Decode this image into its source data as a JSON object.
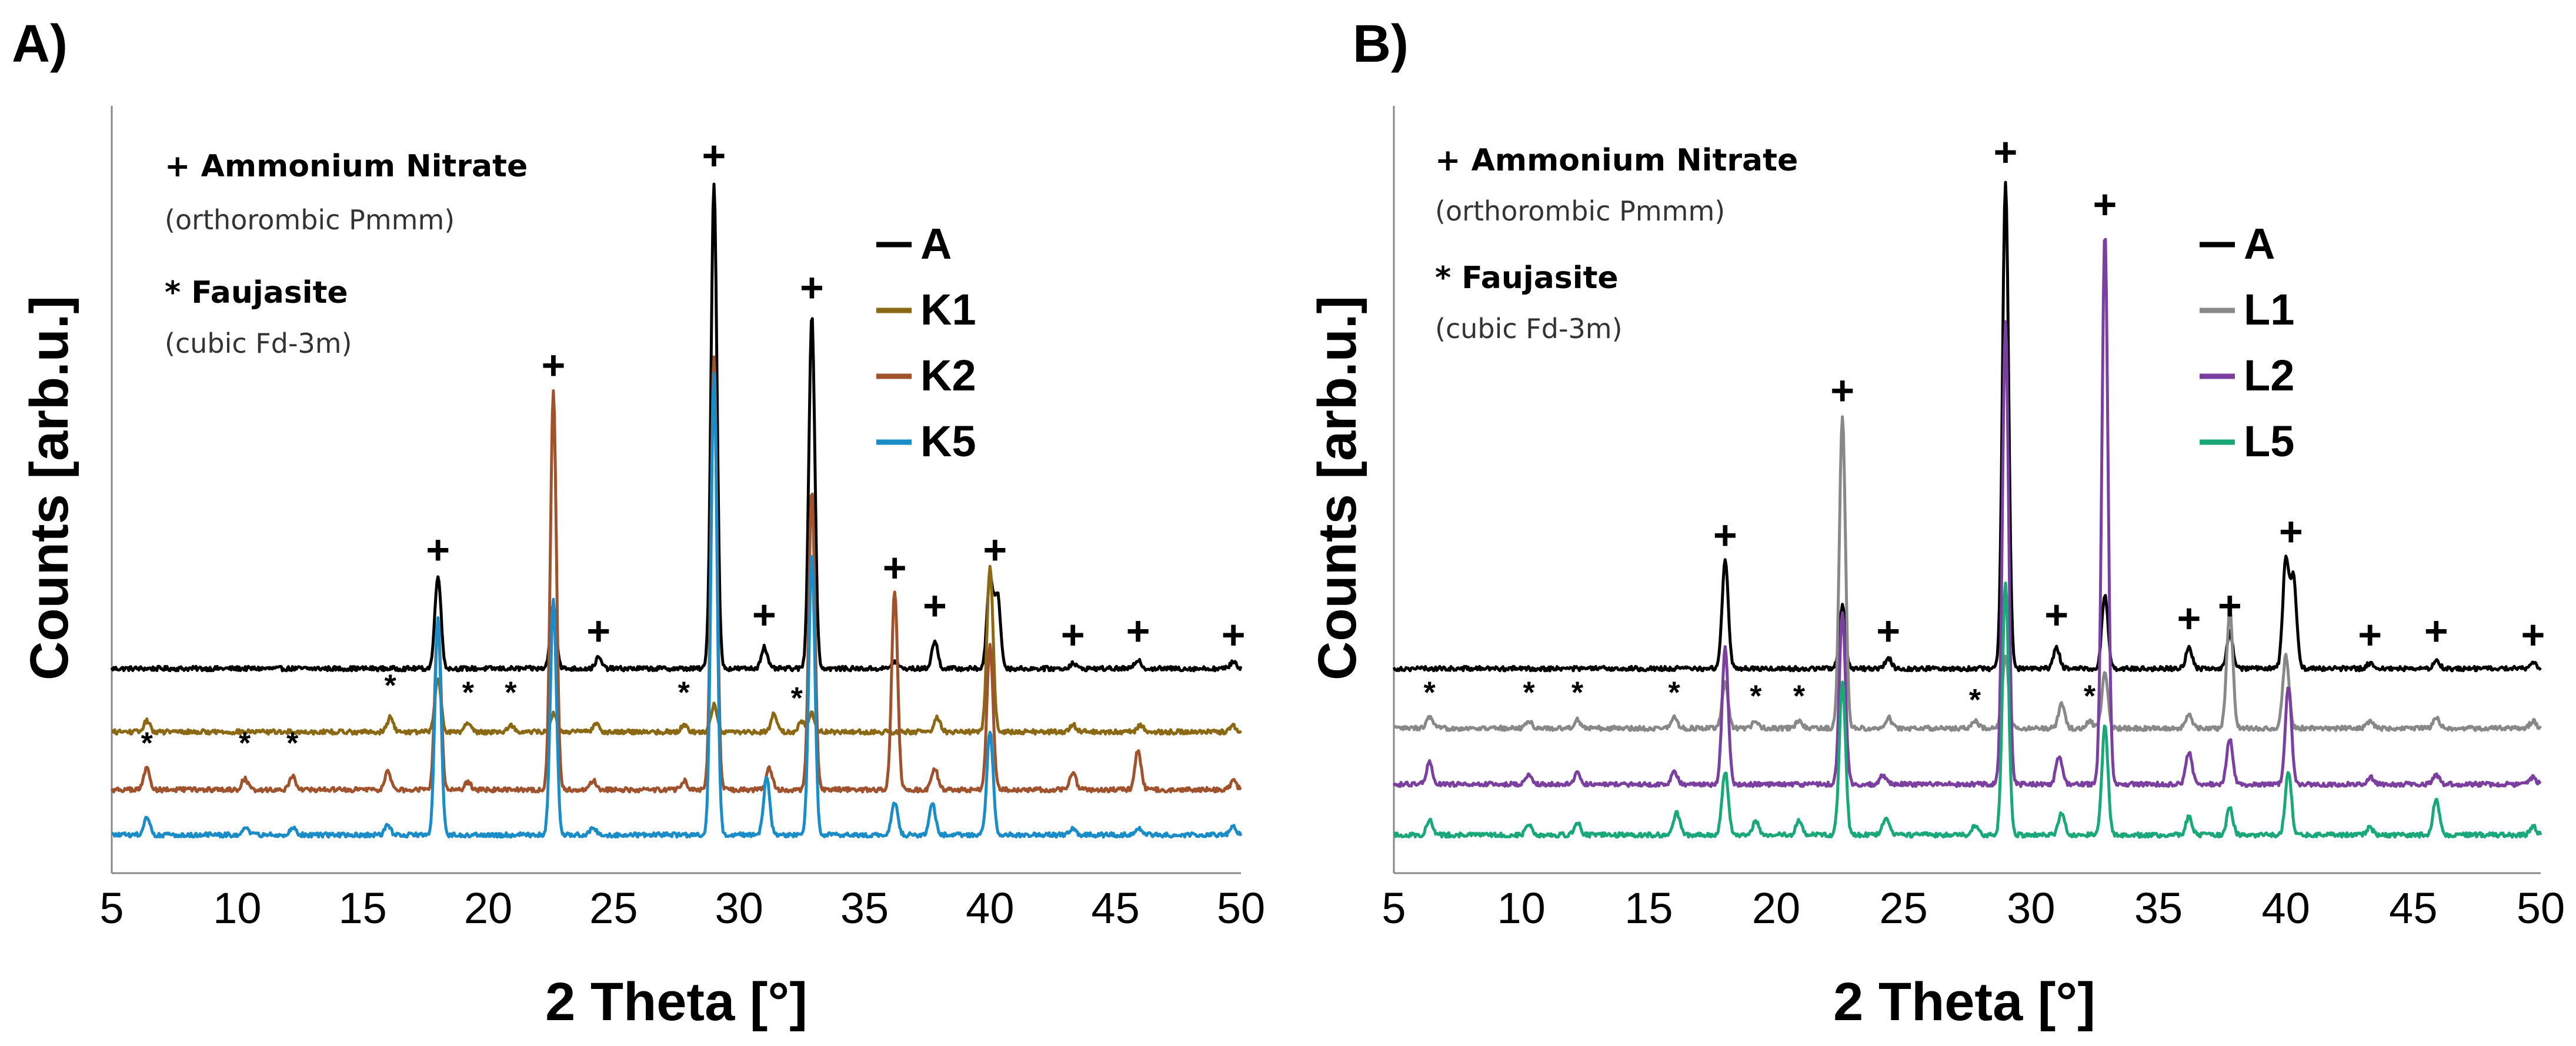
{
  "chart_data": [
    {
      "type": "line",
      "panel_label": "A)",
      "xlabel": "2 Theta [°]",
      "ylabel": "Counts [arb.u.]",
      "xlim": [
        5,
        50
      ],
      "xticks": [
        "5",
        "10",
        "15",
        "20",
        "25",
        "30",
        "35",
        "40",
        "45",
        "50"
      ],
      "annotations": {
        "plus_title": "+ Ammonium Nitrate",
        "plus_sub": "(orthorombic Pmmm)",
        "star_title": "* Faujasite",
        "star_sub": "(cubic Fd-3m)"
      },
      "legend": [
        "A",
        "K1",
        "K2",
        "K5"
      ],
      "series": [
        {
          "name": "A",
          "color": "#000000",
          "baseline": 0.0,
          "peaks": [
            [
              18.0,
              0.52
            ],
            [
              22.6,
              0.35
            ],
            [
              24.4,
              0.06
            ],
            [
              29.0,
              2.68
            ],
            [
              31.0,
              0.12
            ],
            [
              32.9,
              1.95
            ],
            [
              36.2,
              0.04
            ],
            [
              37.8,
              0.15
            ],
            [
              40.0,
              0.5
            ],
            [
              40.3,
              0.4
            ],
            [
              43.3,
              0.03
            ],
            [
              45.9,
              0.05
            ],
            [
              49.7,
              0.04
            ]
          ]
        },
        {
          "name": "K1",
          "color": "#8B6914",
          "baseline": -0.35,
          "peaks": [
            [
              6.4,
              0.06
            ],
            [
              16.1,
              0.08
            ],
            [
              18.0,
              0.3
            ],
            [
              19.2,
              0.05
            ],
            [
              20.9,
              0.04
            ],
            [
              22.6,
              0.1
            ],
            [
              24.3,
              0.05
            ],
            [
              27.8,
              0.04
            ],
            [
              29.0,
              0.15
            ],
            [
              31.4,
              0.1
            ],
            [
              32.5,
              0.06
            ],
            [
              32.9,
              0.1
            ],
            [
              37.9,
              0.08
            ],
            [
              40.0,
              0.92
            ],
            [
              43.3,
              0.04
            ],
            [
              46.0,
              0.04
            ],
            [
              49.7,
              0.03
            ]
          ]
        },
        {
          "name": "K2",
          "color": "#A0522D",
          "baseline": -0.67,
          "peaks": [
            [
              6.4,
              0.12
            ],
            [
              10.3,
              0.06
            ],
            [
              12.2,
              0.08
            ],
            [
              16.0,
              0.1
            ],
            [
              18.0,
              0.95
            ],
            [
              19.2,
              0.04
            ],
            [
              22.6,
              2.2
            ],
            [
              24.2,
              0.05
            ],
            [
              27.8,
              0.05
            ],
            [
              29.0,
              2.4
            ],
            [
              31.2,
              0.12
            ],
            [
              32.9,
              1.65
            ],
            [
              36.2,
              1.1
            ],
            [
              37.8,
              0.12
            ],
            [
              40.0,
              0.8
            ],
            [
              43.3,
              0.1
            ],
            [
              45.9,
              0.22
            ],
            [
              49.7,
              0.05
            ]
          ]
        },
        {
          "name": "K5",
          "color": "#1A8CC8",
          "baseline": -0.92,
          "peaks": [
            [
              6.4,
              0.1
            ],
            [
              10.3,
              0.04
            ],
            [
              12.2,
              0.04
            ],
            [
              16.0,
              0.05
            ],
            [
              18.0,
              1.2
            ],
            [
              22.6,
              1.3
            ],
            [
              24.2,
              0.04
            ],
            [
              29.0,
              2.55
            ],
            [
              31.1,
              0.32
            ],
            [
              32.9,
              1.55
            ],
            [
              36.2,
              0.18
            ],
            [
              37.7,
              0.18
            ],
            [
              40.0,
              0.58
            ],
            [
              43.3,
              0.04
            ],
            [
              45.9,
              0.04
            ],
            [
              49.7,
              0.05
            ]
          ]
        }
      ],
      "plus_markers": [
        [
          18.0,
          0.58
        ],
        [
          22.6,
          1.6
        ],
        [
          24.4,
          0.13
        ],
        [
          29.0,
          2.76
        ],
        [
          31.0,
          0.22
        ],
        [
          32.9,
          2.03
        ],
        [
          36.2,
          0.48
        ],
        [
          37.8,
          0.27
        ],
        [
          40.2,
          0.58
        ],
        [
          43.3,
          0.11
        ],
        [
          45.9,
          0.13
        ],
        [
          49.7,
          0.11
        ]
      ],
      "star_markers": [
        [
          6.4,
          -0.47
        ],
        [
          10.3,
          -0.47
        ],
        [
          12.2,
          -0.47
        ],
        [
          16.1,
          -0.15
        ],
        [
          19.2,
          -0.19
        ],
        [
          20.9,
          -0.19
        ],
        [
          27.8,
          -0.19
        ],
        [
          32.3,
          -0.22
        ]
      ],
      "ylim": [
        -1.05,
        2.95
      ]
    },
    {
      "type": "line",
      "panel_label": "B)",
      "xlabel": "2 Theta [°]",
      "ylabel": "Counts [arb.u.]",
      "xlim": [
        5,
        50
      ],
      "xticks": [
        "5",
        "10",
        "15",
        "20",
        "25",
        "30",
        "35",
        "40",
        "45",
        "50"
      ],
      "annotations": {
        "plus_title": "+ Ammonium Nitrate",
        "plus_sub": "(orthorombic Pmmm)",
        "star_title": "* Faujasite",
        "star_sub": "(cubic Fd-3m)"
      },
      "legend": [
        "A",
        "L1",
        "L2",
        "L5"
      ],
      "series": [
        {
          "name": "A",
          "color": "#000000",
          "baseline": 0.0,
          "peaks": [
            [
              18.0,
              0.6
            ],
            [
              22.6,
              0.35
            ],
            [
              24.4,
              0.06
            ],
            [
              29.0,
              2.7
            ],
            [
              31.0,
              0.12
            ],
            [
              32.9,
              0.4
            ],
            [
              36.2,
              0.12
            ],
            [
              37.8,
              0.2
            ],
            [
              40.0,
              0.6
            ],
            [
              40.3,
              0.5
            ],
            [
              43.3,
              0.03
            ],
            [
              45.9,
              0.05
            ],
            [
              49.7,
              0.04
            ]
          ]
        },
        {
          "name": "L1",
          "color": "#888888",
          "baseline": -0.33,
          "peaks": [
            [
              6.4,
              0.06
            ],
            [
              10.3,
              0.04
            ],
            [
              12.2,
              0.05
            ],
            [
              16.0,
              0.06
            ],
            [
              18.0,
              0.25
            ],
            [
              19.2,
              0.04
            ],
            [
              20.9,
              0.04
            ],
            [
              22.6,
              1.72
            ],
            [
              24.4,
              0.06
            ],
            [
              27.8,
              0.04
            ],
            [
              29.0,
              0.4
            ],
            [
              31.2,
              0.13
            ],
            [
              32.3,
              0.04
            ],
            [
              32.9,
              0.3
            ],
            [
              36.2,
              0.08
            ],
            [
              37.8,
              0.65
            ],
            [
              40.0,
              0.4
            ],
            [
              43.3,
              0.04
            ],
            [
              45.9,
              0.06
            ],
            [
              49.7,
              0.04
            ]
          ]
        },
        {
          "name": "L2",
          "color": "#7B3FA0",
          "baseline": -0.64,
          "peaks": [
            [
              6.4,
              0.12
            ],
            [
              10.3,
              0.05
            ],
            [
              12.2,
              0.06
            ],
            [
              16.0,
              0.07
            ],
            [
              18.0,
              0.75
            ],
            [
              22.6,
              0.95
            ],
            [
              24.2,
              0.05
            ],
            [
              29.0,
              2.55
            ],
            [
              31.1,
              0.15
            ],
            [
              32.9,
              3.05
            ],
            [
              36.2,
              0.18
            ],
            [
              37.8,
              0.25
            ],
            [
              40.1,
              0.55
            ],
            [
              43.3,
              0.04
            ],
            [
              45.9,
              0.05
            ],
            [
              49.7,
              0.04
            ]
          ]
        },
        {
          "name": "L5",
          "color": "#1AA878",
          "baseline": -0.92,
          "peaks": [
            [
              6.4,
              0.08
            ],
            [
              10.3,
              0.06
            ],
            [
              12.2,
              0.07
            ],
            [
              16.1,
              0.12
            ],
            [
              18.0,
              0.35
            ],
            [
              19.2,
              0.08
            ],
            [
              20.9,
              0.08
            ],
            [
              22.6,
              0.85
            ],
            [
              24.3,
              0.1
            ],
            [
              27.8,
              0.05
            ],
            [
              29.0,
              1.4
            ],
            [
              31.2,
              0.12
            ],
            [
              32.9,
              0.6
            ],
            [
              36.2,
              0.1
            ],
            [
              37.8,
              0.15
            ],
            [
              40.1,
              0.35
            ],
            [
              43.3,
              0.04
            ],
            [
              45.9,
              0.2
            ],
            [
              49.7,
              0.05
            ]
          ]
        }
      ],
      "plus_markers": [
        [
          18.0,
          0.66
        ],
        [
          22.6,
          1.46
        ],
        [
          24.4,
          0.13
        ],
        [
          29.0,
          2.78
        ],
        [
          31.0,
          0.22
        ],
        [
          32.9,
          2.49
        ],
        [
          36.2,
          0.2
        ],
        [
          37.8,
          0.27
        ],
        [
          40.2,
          0.68
        ],
        [
          43.3,
          0.11
        ],
        [
          45.9,
          0.13
        ],
        [
          49.7,
          0.11
        ]
      ],
      "star_markers": [
        [
          6.4,
          -0.19
        ],
        [
          10.3,
          -0.19
        ],
        [
          12.2,
          -0.19
        ],
        [
          16.0,
          -0.19
        ],
        [
          19.2,
          -0.21
        ],
        [
          20.9,
          -0.21
        ],
        [
          27.8,
          -0.23
        ],
        [
          32.3,
          -0.21
        ]
      ],
      "ylim": [
        -1.05,
        2.95
      ]
    }
  ]
}
